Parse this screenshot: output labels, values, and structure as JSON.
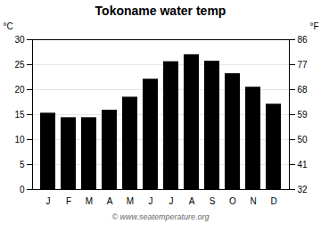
{
  "chart_data": {
    "type": "bar",
    "title": "Tokoname water temp",
    "categories": [
      "J",
      "F",
      "M",
      "A",
      "M",
      "J",
      "J",
      "A",
      "S",
      "O",
      "N",
      "D"
    ],
    "values": [
      15.3,
      14.4,
      14.4,
      15.9,
      18.5,
      22.1,
      25.6,
      27.0,
      25.7,
      23.2,
      20.5,
      17.1
    ],
    "ylabel": "°C",
    "ylim": [
      0,
      30
    ],
    "yticks": [
      0,
      5,
      10,
      15,
      20,
      25,
      30
    ],
    "y2label": "°F",
    "y2lim": [
      32,
      86
    ],
    "y2ticks": [
      32,
      41,
      50,
      59,
      68,
      77,
      86
    ],
    "grid": true,
    "caption": "© www.seatemperature.org"
  }
}
